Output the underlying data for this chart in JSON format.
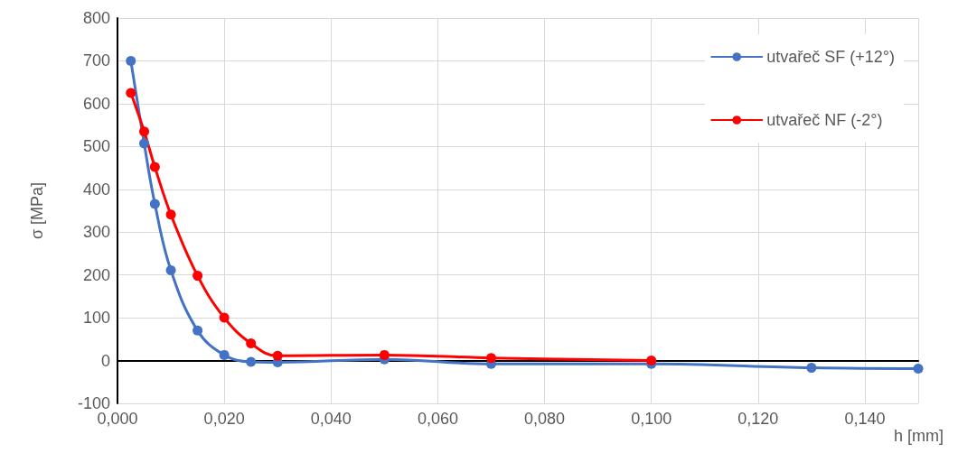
{
  "chart_data": {
    "type": "line",
    "xlabel": "h [mm]",
    "ylabel": "σ [MPa]",
    "xlim": [
      0,
      0.15
    ],
    "xticks": [
      {
        "value": 0,
        "label": "0,000"
      },
      {
        "value": 0.02,
        "label": "0,020"
      },
      {
        "value": 0.04,
        "label": "0,040"
      },
      {
        "value": 0.06,
        "label": "0,060"
      },
      {
        "value": 0.08,
        "label": "0,080"
      },
      {
        "value": 0.1,
        "label": "0,100"
      },
      {
        "value": 0.12,
        "label": "0,120"
      },
      {
        "value": 0.14,
        "label": "0,140"
      }
    ],
    "ylim": [
      -100,
      800
    ],
    "yticks": [
      -100,
      0,
      100,
      200,
      300,
      400,
      500,
      600,
      700,
      800
    ],
    "grid": true,
    "legend": "top right",
    "marker": "circle",
    "line_style": "solid",
    "series": [
      {
        "name": "utvařeč SF (+12°)",
        "color": "#4472c4",
        "x": [
          0.0025,
          0.005,
          0.007,
          0.01,
          0.015,
          0.02,
          0.025,
          0.03,
          0.05,
          0.07,
          0.1,
          0.13,
          0.15
        ],
        "values": [
          700,
          507,
          366,
          211,
          70,
          13,
          -3,
          -4,
          3,
          -8,
          -8,
          -17,
          -19
        ]
      },
      {
        "name": "utvařeč NF (-2°)",
        "color": "#ff0000",
        "x": [
          0.0025,
          0.005,
          0.007,
          0.01,
          0.015,
          0.02,
          0.025,
          0.03,
          0.05,
          0.07,
          0.1
        ],
        "values": [
          625,
          535,
          452,
          341,
          198,
          100,
          40,
          11,
          13,
          6,
          0
        ]
      }
    ]
  }
}
